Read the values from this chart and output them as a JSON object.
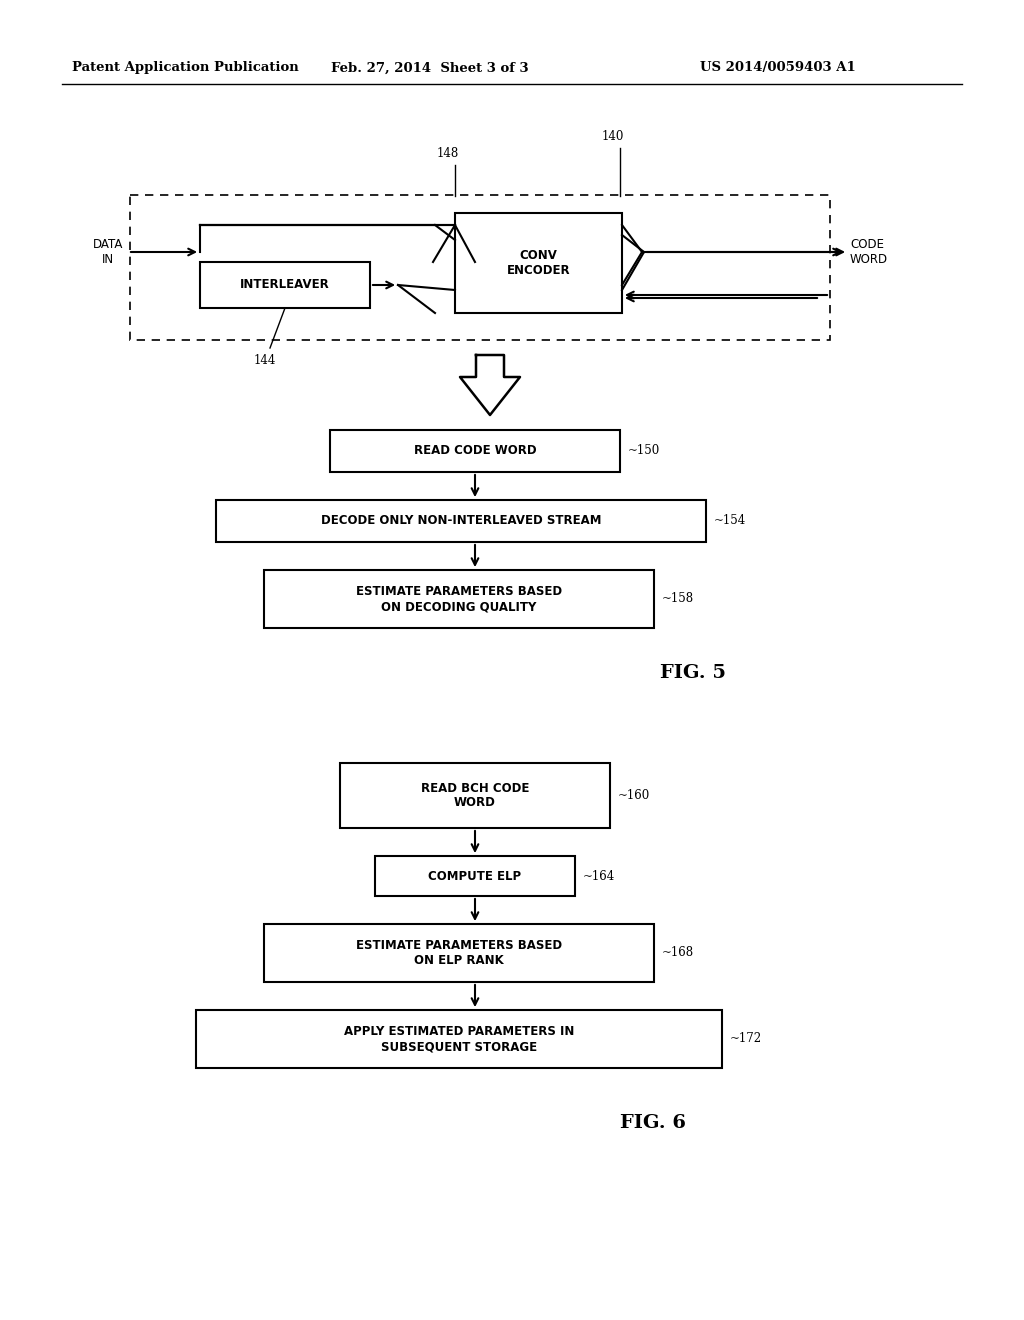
{
  "header_left": "Patent Application Publication",
  "header_center": "Feb. 27, 2014  Sheet 3 of 3",
  "header_right": "US 2014/0059403 A1",
  "fig5_label": "FIG. 5",
  "fig6_label": "FIG. 6",
  "background_color": "#ffffff",
  "line_color": "#000000",
  "text_color": "#000000"
}
